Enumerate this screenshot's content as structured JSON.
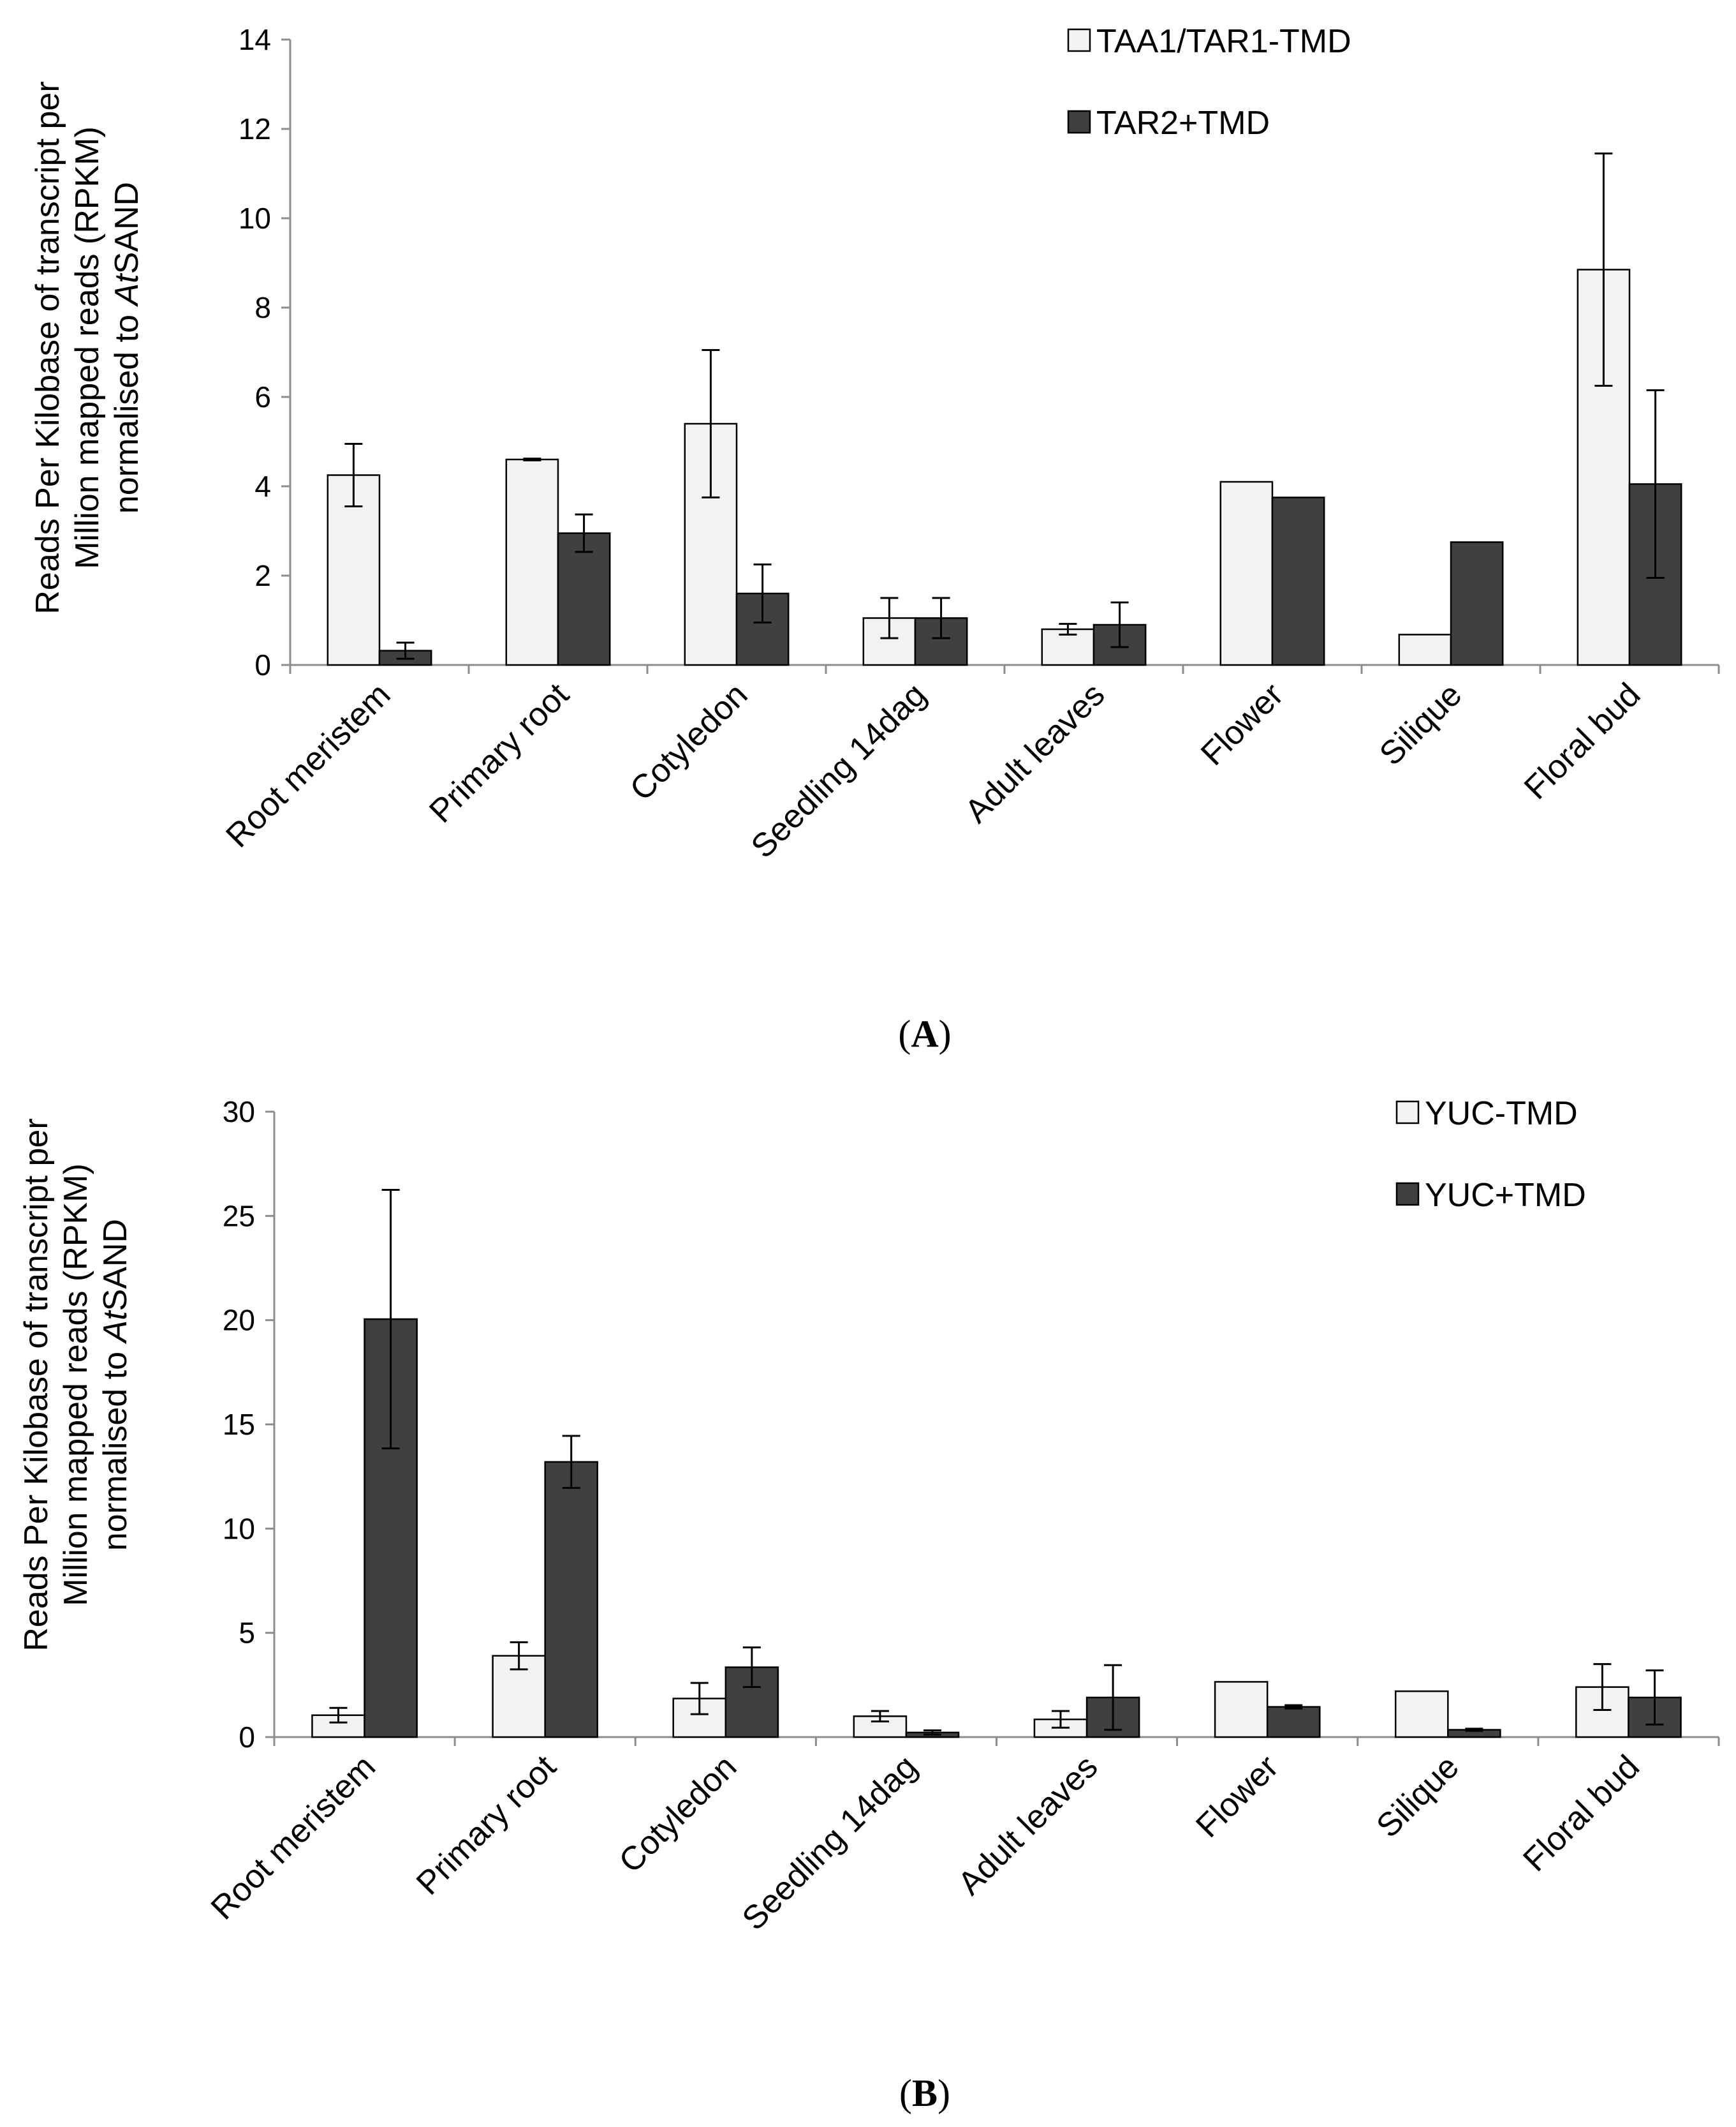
{
  "colors": {
    "light_bar": "#f2f2f2",
    "dark_bar": "#404040",
    "bar_stroke": "#000000",
    "axis": "#8c8c8c"
  },
  "chart_data": [
    {
      "type": "bar",
      "panel_label": "A",
      "categories": [
        "Root meristem",
        "Primary root",
        "Cotyledon",
        "Seedling 14dag",
        "Adult leaves",
        "Flower",
        "Silique",
        "Floral bud"
      ],
      "ylabel_lines": [
        "Reads Per Kilobase of transcript per",
        "Million mapped reads (RPKM)"
      ],
      "ylabel_line3_prefix": "normalised to ",
      "ylabel_line3_italic": "At",
      "ylabel_line3_suffix": "SAND",
      "ylim": [
        0,
        14
      ],
      "yticks": [
        0,
        2,
        4,
        6,
        8,
        10,
        12,
        14
      ],
      "legend_position": "top-right",
      "series": [
        {
          "name": "TAA1/TAR1-TMD",
          "style": "light",
          "values": [
            4.25,
            4.6,
            5.4,
            1.05,
            0.8,
            4.1,
            0.68,
            8.85
          ],
          "errors": [
            0.7,
            0.02,
            1.65,
            0.45,
            0.12,
            0,
            0,
            2.6
          ]
        },
        {
          "name": "TAR2+TMD",
          "style": "dark",
          "values": [
            0.32,
            2.95,
            1.6,
            1.05,
            0.9,
            3.75,
            2.75,
            4.05
          ],
          "errors": [
            0.18,
            0.42,
            0.65,
            0.45,
            0.5,
            0,
            0,
            2.1
          ]
        }
      ]
    },
    {
      "type": "bar",
      "panel_label": "B",
      "categories": [
        "Root meristem",
        "Primary root",
        "Cotyledon",
        "Seedling 14dag",
        "Adult leaves",
        "Flower",
        "Silique",
        "Floral bud"
      ],
      "ylabel_lines": [
        "Reads Per Kilobase of transcript per",
        "Million mapped reads (RPKM)"
      ],
      "ylabel_line3_prefix": "normalised to ",
      "ylabel_line3_italic": "At",
      "ylabel_line3_suffix": "SAND",
      "ylim": [
        0,
        30
      ],
      "yticks": [
        0,
        5,
        10,
        15,
        20,
        25,
        30
      ],
      "legend_position": "top-right",
      "series": [
        {
          "name": "YUC-TMD",
          "style": "light",
          "values": [
            1.05,
            3.9,
            1.85,
            1.0,
            0.85,
            2.65,
            2.2,
            2.4
          ],
          "errors": [
            0.35,
            0.65,
            0.75,
            0.25,
            0.4,
            0,
            0,
            1.1
          ]
        },
        {
          "name": "YUC+TMD",
          "style": "dark",
          "values": [
            20.05,
            13.2,
            3.35,
            0.22,
            1.9,
            1.45,
            0.35,
            1.9
          ],
          "errors": [
            6.2,
            1.25,
            0.95,
            0.1,
            1.55,
            0.08,
            0.05,
            1.3
          ]
        }
      ]
    }
  ]
}
